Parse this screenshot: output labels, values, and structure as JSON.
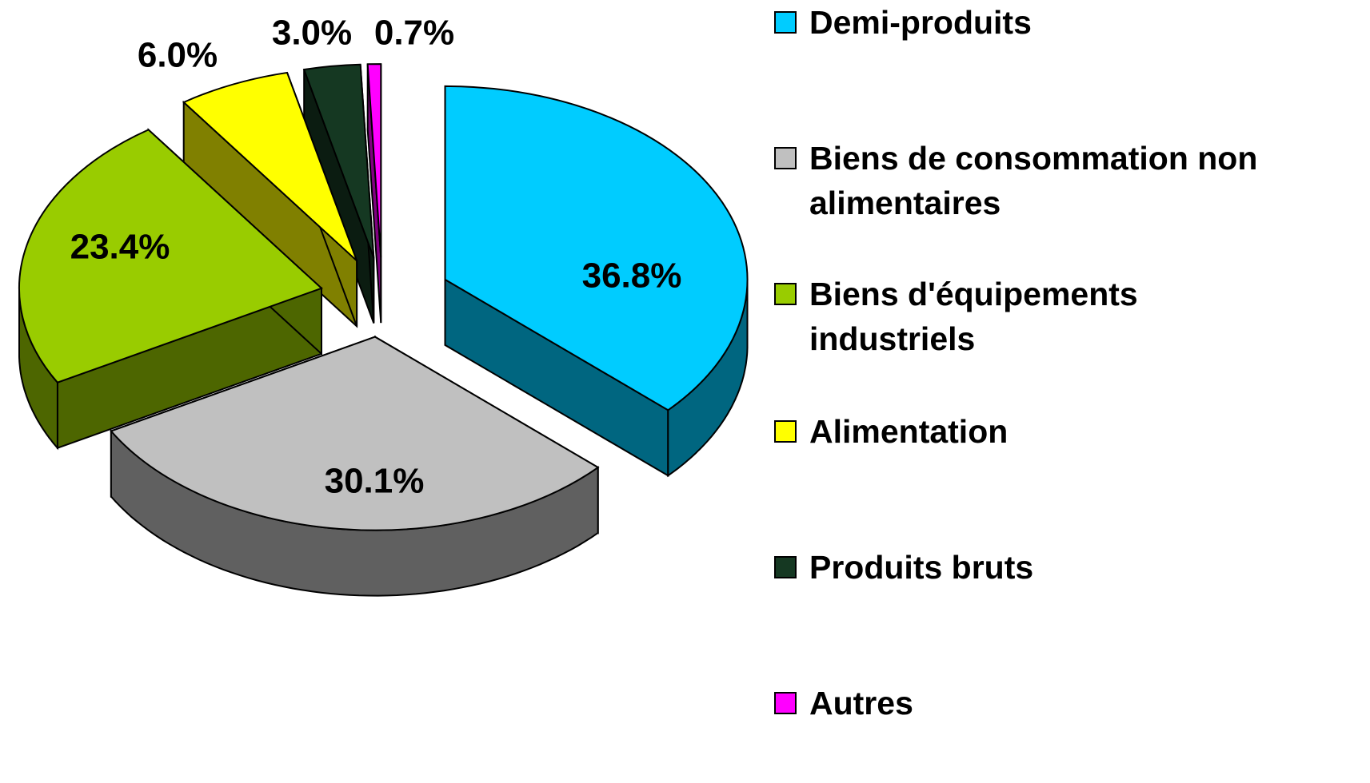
{
  "chart_data": {
    "type": "pie",
    "categories": [
      "Demi-produits",
      "Biens de consommation non alimentaires",
      "Biens d'équipements industriels",
      "Alimentation",
      "Produits bruts",
      "Autres"
    ],
    "values": [
      36.8,
      30.1,
      23.4,
      6.0,
      3.0,
      0.7
    ],
    "value_labels": [
      "36.8%",
      "30.1%",
      "23.4%",
      "6.0%",
      "3.0%",
      "0.7%"
    ],
    "colors": [
      "#00ccff",
      "#c0c0c0",
      "#99cc00",
      "#ffff00",
      "#153822",
      "#ff00ff"
    ],
    "legend": "right"
  }
}
